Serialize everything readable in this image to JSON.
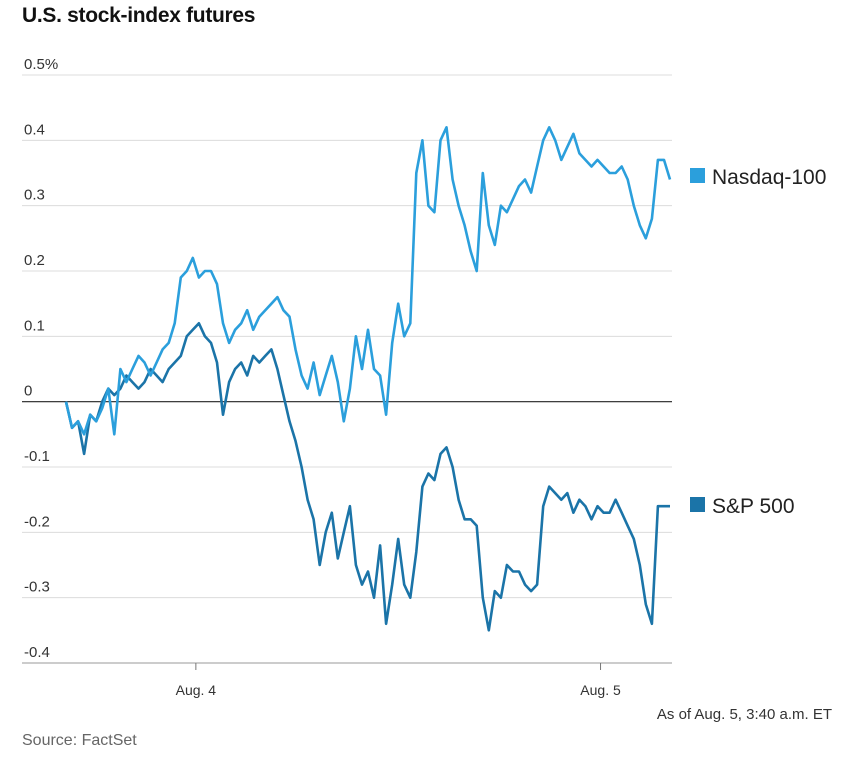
{
  "title": "U.S. stock-index futures",
  "as_of": "As of Aug. 5, 3:40 a.m. ET",
  "source": "Source: FactSet",
  "chart_data": {
    "type": "line",
    "y_tick_labels": [
      "0.5%",
      "0.4",
      "0.3",
      "0.2",
      "0.1",
      "0",
      "-0.1",
      "-0.2",
      "-0.3",
      "-0.4"
    ],
    "y_tick_values": [
      0.5,
      0.4,
      0.3,
      0.2,
      0.1,
      0,
      -0.1,
      -0.2,
      -0.3,
      -0.4
    ],
    "ylim": [
      -0.4,
      0.5
    ],
    "x_tick_labels": [
      "Aug. 4",
      "Aug. 5"
    ],
    "x_tick_values": [
      0.215,
      0.885
    ],
    "xlim": [
      0,
      1
    ],
    "grid": true,
    "zero_line": true,
    "series": [
      {
        "name": "Nasdaq-100",
        "color": "#2b9fdc",
        "points": [
          [
            0.0,
            0.0
          ],
          [
            0.01,
            -0.04
          ],
          [
            0.02,
            -0.03
          ],
          [
            0.03,
            -0.05
          ],
          [
            0.04,
            -0.02
          ],
          [
            0.05,
            -0.03
          ],
          [
            0.06,
            -0.01
          ],
          [
            0.07,
            0.02
          ],
          [
            0.08,
            -0.05
          ],
          [
            0.09,
            0.05
          ],
          [
            0.1,
            0.03
          ],
          [
            0.11,
            0.05
          ],
          [
            0.12,
            0.07
          ],
          [
            0.13,
            0.06
          ],
          [
            0.14,
            0.04
          ],
          [
            0.15,
            0.06
          ],
          [
            0.16,
            0.08
          ],
          [
            0.17,
            0.09
          ],
          [
            0.18,
            0.12
          ],
          [
            0.19,
            0.19
          ],
          [
            0.2,
            0.2
          ],
          [
            0.21,
            0.22
          ],
          [
            0.22,
            0.19
          ],
          [
            0.23,
            0.2
          ],
          [
            0.24,
            0.2
          ],
          [
            0.25,
            0.18
          ],
          [
            0.26,
            0.12
          ],
          [
            0.27,
            0.09
          ],
          [
            0.28,
            0.11
          ],
          [
            0.29,
            0.12
          ],
          [
            0.3,
            0.14
          ],
          [
            0.31,
            0.11
          ],
          [
            0.32,
            0.13
          ],
          [
            0.33,
            0.14
          ],
          [
            0.34,
            0.15
          ],
          [
            0.35,
            0.16
          ],
          [
            0.36,
            0.14
          ],
          [
            0.37,
            0.13
          ],
          [
            0.38,
            0.08
          ],
          [
            0.39,
            0.04
          ],
          [
            0.4,
            0.02
          ],
          [
            0.41,
            0.06
          ],
          [
            0.42,
            0.01
          ],
          [
            0.43,
            0.04
          ],
          [
            0.44,
            0.07
          ],
          [
            0.45,
            0.03
          ],
          [
            0.46,
            -0.03
          ],
          [
            0.47,
            0.02
          ],
          [
            0.48,
            0.1
          ],
          [
            0.49,
            0.05
          ],
          [
            0.5,
            0.11
          ],
          [
            0.51,
            0.05
          ],
          [
            0.52,
            0.04
          ],
          [
            0.53,
            -0.02
          ],
          [
            0.54,
            0.09
          ],
          [
            0.55,
            0.15
          ],
          [
            0.56,
            0.1
          ],
          [
            0.57,
            0.12
          ],
          [
            0.58,
            0.35
          ],
          [
            0.59,
            0.4
          ],
          [
            0.6,
            0.3
          ],
          [
            0.61,
            0.29
          ],
          [
            0.62,
            0.4
          ],
          [
            0.63,
            0.42
          ],
          [
            0.64,
            0.34
          ],
          [
            0.65,
            0.3
          ],
          [
            0.66,
            0.27
          ],
          [
            0.67,
            0.23
          ],
          [
            0.68,
            0.2
          ],
          [
            0.69,
            0.35
          ],
          [
            0.7,
            0.27
          ],
          [
            0.71,
            0.24
          ],
          [
            0.72,
            0.3
          ],
          [
            0.73,
            0.29
          ],
          [
            0.74,
            0.31
          ],
          [
            0.75,
            0.33
          ],
          [
            0.76,
            0.34
          ],
          [
            0.77,
            0.32
          ],
          [
            0.78,
            0.36
          ],
          [
            0.79,
            0.4
          ],
          [
            0.8,
            0.42
          ],
          [
            0.81,
            0.4
          ],
          [
            0.82,
            0.37
          ],
          [
            0.83,
            0.39
          ],
          [
            0.84,
            0.41
          ],
          [
            0.85,
            0.38
          ],
          [
            0.86,
            0.37
          ],
          [
            0.87,
            0.36
          ],
          [
            0.88,
            0.37
          ],
          [
            0.89,
            0.36
          ],
          [
            0.9,
            0.35
          ],
          [
            0.91,
            0.35
          ],
          [
            0.92,
            0.36
          ],
          [
            0.93,
            0.34
          ],
          [
            0.94,
            0.3
          ],
          [
            0.95,
            0.27
          ],
          [
            0.96,
            0.25
          ],
          [
            0.97,
            0.28
          ],
          [
            0.98,
            0.37
          ],
          [
            0.99,
            0.37
          ],
          [
            1.0,
            0.34
          ]
        ]
      },
      {
        "name": "S&P 500",
        "color": "#1b74a8",
        "points": [
          [
            0.0,
            0.0
          ],
          [
            0.01,
            -0.04
          ],
          [
            0.02,
            -0.03
          ],
          [
            0.03,
            -0.08
          ],
          [
            0.04,
            -0.02
          ],
          [
            0.05,
            -0.03
          ],
          [
            0.06,
            0.0
          ],
          [
            0.07,
            0.02
          ],
          [
            0.08,
            0.01
          ],
          [
            0.09,
            0.02
          ],
          [
            0.1,
            0.04
          ],
          [
            0.11,
            0.03
          ],
          [
            0.12,
            0.02
          ],
          [
            0.13,
            0.03
          ],
          [
            0.14,
            0.05
          ],
          [
            0.15,
            0.04
          ],
          [
            0.16,
            0.03
          ],
          [
            0.17,
            0.05
          ],
          [
            0.18,
            0.06
          ],
          [
            0.19,
            0.07
          ],
          [
            0.2,
            0.1
          ],
          [
            0.21,
            0.11
          ],
          [
            0.22,
            0.12
          ],
          [
            0.23,
            0.1
          ],
          [
            0.24,
            0.09
          ],
          [
            0.25,
            0.06
          ],
          [
            0.26,
            -0.02
          ],
          [
            0.27,
            0.03
          ],
          [
            0.28,
            0.05
          ],
          [
            0.29,
            0.06
          ],
          [
            0.3,
            0.04
          ],
          [
            0.31,
            0.07
          ],
          [
            0.32,
            0.06
          ],
          [
            0.33,
            0.07
          ],
          [
            0.34,
            0.08
          ],
          [
            0.35,
            0.05
          ],
          [
            0.36,
            0.01
          ],
          [
            0.37,
            -0.03
          ],
          [
            0.38,
            -0.06
          ],
          [
            0.39,
            -0.1
          ],
          [
            0.4,
            -0.15
          ],
          [
            0.41,
            -0.18
          ],
          [
            0.42,
            -0.25
          ],
          [
            0.43,
            -0.2
          ],
          [
            0.44,
            -0.17
          ],
          [
            0.45,
            -0.24
          ],
          [
            0.46,
            -0.2
          ],
          [
            0.47,
            -0.16
          ],
          [
            0.48,
            -0.25
          ],
          [
            0.49,
            -0.28
          ],
          [
            0.5,
            -0.26
          ],
          [
            0.51,
            -0.3
          ],
          [
            0.52,
            -0.22
          ],
          [
            0.53,
            -0.34
          ],
          [
            0.54,
            -0.28
          ],
          [
            0.55,
            -0.21
          ],
          [
            0.56,
            -0.28
          ],
          [
            0.57,
            -0.3
          ],
          [
            0.58,
            -0.23
          ],
          [
            0.59,
            -0.13
          ],
          [
            0.6,
            -0.11
          ],
          [
            0.61,
            -0.12
          ],
          [
            0.62,
            -0.08
          ],
          [
            0.63,
            -0.07
          ],
          [
            0.64,
            -0.1
          ],
          [
            0.65,
            -0.15
          ],
          [
            0.66,
            -0.18
          ],
          [
            0.67,
            -0.18
          ],
          [
            0.68,
            -0.19
          ],
          [
            0.69,
            -0.3
          ],
          [
            0.7,
            -0.35
          ],
          [
            0.71,
            -0.29
          ],
          [
            0.72,
            -0.3
          ],
          [
            0.73,
            -0.25
          ],
          [
            0.74,
            -0.26
          ],
          [
            0.75,
            -0.26
          ],
          [
            0.76,
            -0.28
          ],
          [
            0.77,
            -0.29
          ],
          [
            0.78,
            -0.28
          ],
          [
            0.79,
            -0.16
          ],
          [
            0.8,
            -0.13
          ],
          [
            0.81,
            -0.14
          ],
          [
            0.82,
            -0.15
          ],
          [
            0.83,
            -0.14
          ],
          [
            0.84,
            -0.17
          ],
          [
            0.85,
            -0.15
          ],
          [
            0.86,
            -0.16
          ],
          [
            0.87,
            -0.18
          ],
          [
            0.88,
            -0.16
          ],
          [
            0.89,
            -0.17
          ],
          [
            0.9,
            -0.17
          ],
          [
            0.91,
            -0.15
          ],
          [
            0.92,
            -0.17
          ],
          [
            0.93,
            -0.19
          ],
          [
            0.94,
            -0.21
          ],
          [
            0.95,
            -0.25
          ],
          [
            0.96,
            -0.31
          ],
          [
            0.97,
            -0.34
          ],
          [
            0.98,
            -0.16
          ],
          [
            0.99,
            -0.16
          ],
          [
            1.0,
            -0.16
          ]
        ]
      }
    ]
  }
}
